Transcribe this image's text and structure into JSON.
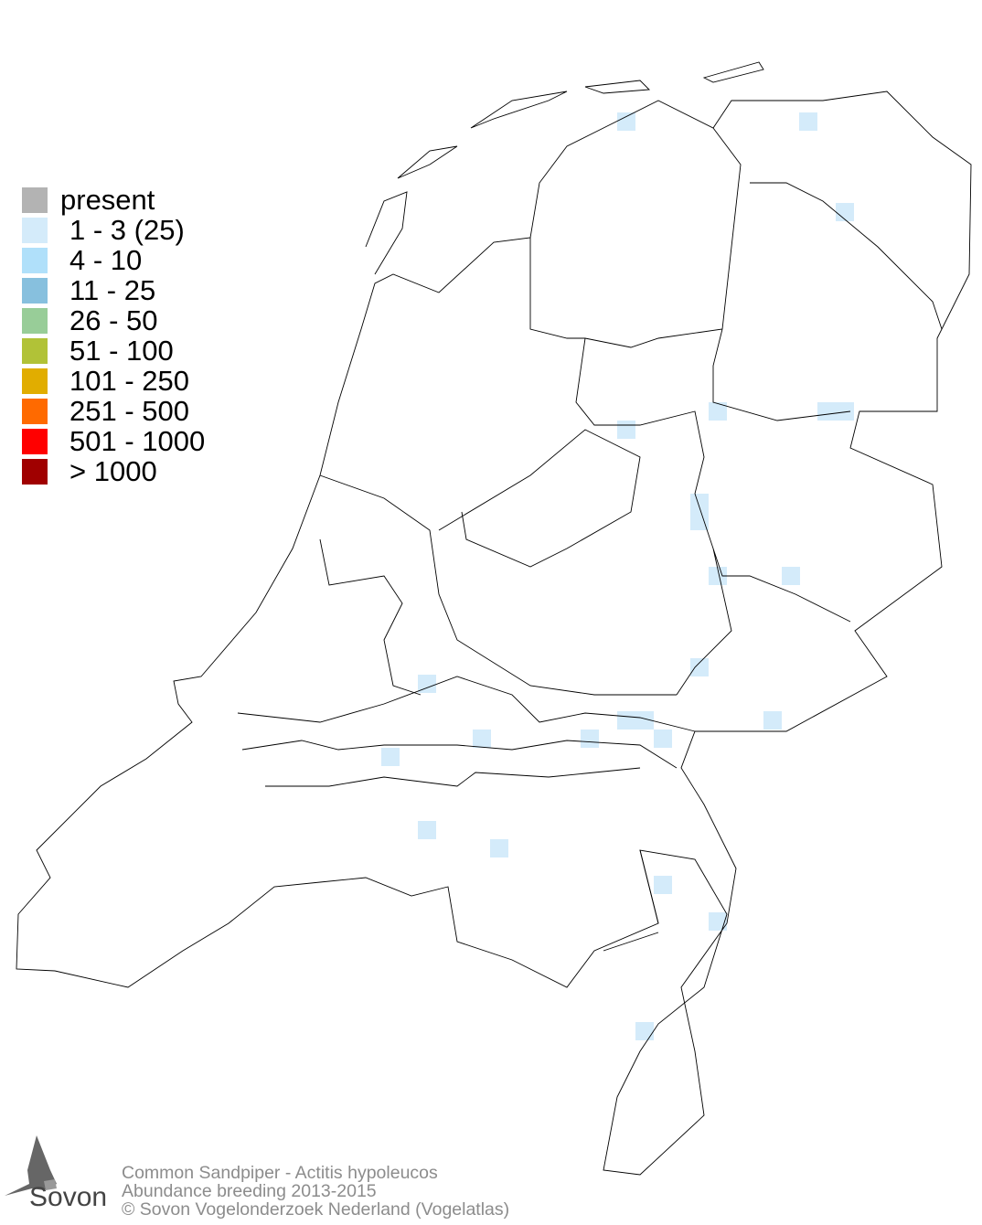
{
  "legend": {
    "items": [
      {
        "label": "present",
        "color": "#b3b3b3"
      },
      {
        "label": "1 - 3 (25)",
        "color": "#d4ebfa"
      },
      {
        "label": "4 - 10",
        "color": "#b0e0fa"
      },
      {
        "label": "11 - 25",
        "color": "#87c0de"
      },
      {
        "label": "26 - 50",
        "color": "#98cd98"
      },
      {
        "label": "51 - 100",
        "color": "#b1c237"
      },
      {
        "label": "101 - 250",
        "color": "#e1ad00"
      },
      {
        "label": "251 - 500",
        "color": "#ff6a00"
      },
      {
        "label": "501 - 1000",
        "color": "#ff0000"
      },
      {
        "label": "> 1000",
        "color": "#a00000"
      }
    ]
  },
  "footer": {
    "species": "Common Sandpiper - Actitis hypoleucos",
    "subtitle": "Abundance breeding 2013-2015",
    "copyright": "© Sovon Vogelonderzoek Nederland (Vogelatlas)"
  },
  "logo": {
    "text": "Sovon"
  }
}
